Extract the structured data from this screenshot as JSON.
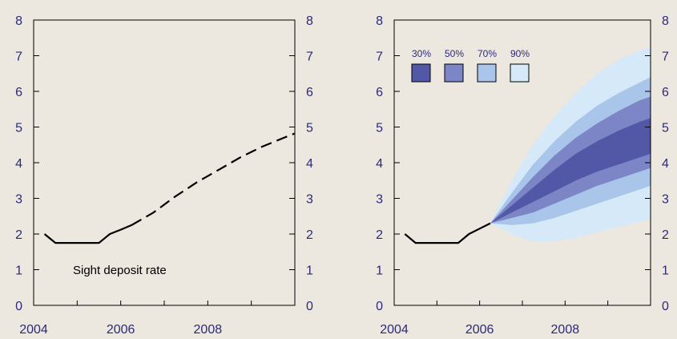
{
  "colors": {
    "background": "#ece7df",
    "axis_text": "#2b2a7a",
    "frame": "#000000",
    "line": "#000000",
    "band_30": "#5257a6",
    "band_50": "#7c86c6",
    "band_70": "#a9c6ea",
    "band_90": "#d6e9f8"
  },
  "chart_data": [
    {
      "type": "line",
      "title": "",
      "xlabel": "",
      "ylabel": "",
      "xlim": [
        2004.0,
        2010.0
      ],
      "ylim": [
        0,
        8
      ],
      "x_ticks": [
        2004,
        2006,
        2008
      ],
      "x_tick_labels": [
        "2004",
        "2006",
        "2008"
      ],
      "y_ticks": [
        0,
        1,
        2,
        3,
        4,
        5,
        6,
        7,
        8
      ],
      "y_tick_labels_left": [
        "0",
        "1",
        "2",
        "3",
        "4",
        "5",
        "6",
        "7",
        "8"
      ],
      "y_tick_labels_right": [
        "0",
        "1",
        "2",
        "3",
        "4",
        "5",
        "6",
        "7",
        "8"
      ],
      "grid": false,
      "annotation": "Sight deposit rate",
      "series": [
        {
          "style": "solid",
          "x": [
            2004.25,
            2004.5,
            2004.75,
            2005.0,
            2005.25,
            2005.5,
            2005.75,
            2006.0,
            2006.25
          ],
          "y": [
            2.0,
            1.75,
            1.75,
            1.75,
            1.75,
            1.75,
            2.0,
            2.12,
            2.25
          ]
        },
        {
          "style": "dashed",
          "x": [
            2006.25,
            2006.75,
            2007.25,
            2007.75,
            2008.25,
            2008.75,
            2009.25,
            2009.75,
            2010.0
          ],
          "y": [
            2.25,
            2.6,
            3.05,
            3.45,
            3.8,
            4.15,
            4.45,
            4.7,
            4.82
          ]
        }
      ]
    },
    {
      "type": "area",
      "title": "",
      "xlabel": "",
      "ylabel": "",
      "xlim": [
        2004.0,
        2010.0
      ],
      "ylim": [
        0,
        8
      ],
      "x_ticks": [
        2004,
        2006,
        2008
      ],
      "x_tick_labels": [
        "2004",
        "2006",
        "2008"
      ],
      "y_ticks": [
        0,
        1,
        2,
        3,
        4,
        5,
        6,
        7,
        8
      ],
      "y_tick_labels_left": [
        "0",
        "1",
        "2",
        "3",
        "4",
        "5",
        "6",
        "7",
        "8"
      ],
      "y_tick_labels_right": [
        "0",
        "1",
        "2",
        "3",
        "4",
        "5",
        "6",
        "7",
        "8"
      ],
      "grid": false,
      "legend": {
        "placement": "top-left",
        "orientation": "horizontal"
      },
      "history": {
        "x": [
          2004.25,
          2004.5,
          2004.75,
          2005.0,
          2005.25,
          2005.5,
          2005.75,
          2006.0,
          2006.25
        ],
        "y": [
          2.0,
          1.75,
          1.75,
          1.75,
          1.75,
          1.75,
          2.0,
          2.15,
          2.3
        ]
      },
      "bands": {
        "x": [
          2006.25,
          2006.75,
          2007.25,
          2007.75,
          2008.25,
          2008.75,
          2009.25,
          2009.75,
          2010.0
        ],
        "90%": {
          "lower": [
            2.3,
            2.0,
            1.78,
            1.8,
            1.88,
            2.05,
            2.2,
            2.35,
            2.42
          ],
          "upper": [
            2.3,
            3.5,
            4.5,
            5.3,
            5.95,
            6.5,
            6.9,
            7.15,
            7.25
          ]
        },
        "70%": {
          "lower": [
            2.3,
            2.25,
            2.3,
            2.45,
            2.65,
            2.85,
            3.05,
            3.25,
            3.35
          ],
          "upper": [
            2.3,
            3.15,
            3.95,
            4.6,
            5.15,
            5.6,
            5.95,
            6.25,
            6.4
          ]
        },
        "50%": {
          "lower": [
            2.3,
            2.45,
            2.6,
            2.85,
            3.1,
            3.35,
            3.55,
            3.75,
            3.85
          ],
          "upper": [
            2.3,
            2.95,
            3.6,
            4.2,
            4.7,
            5.1,
            5.45,
            5.75,
            5.85
          ]
        },
        "30%": {
          "lower": [
            2.3,
            2.6,
            2.9,
            3.2,
            3.5,
            3.75,
            3.95,
            4.15,
            4.25
          ],
          "upper": [
            2.3,
            2.8,
            3.3,
            3.8,
            4.25,
            4.6,
            4.9,
            5.15,
            5.25
          ]
        }
      },
      "legend_entries": [
        {
          "label": "30%",
          "color": "#5257a6"
        },
        {
          "label": "50%",
          "color": "#7c86c6"
        },
        {
          "label": "70%",
          "color": "#a9c6ea"
        },
        {
          "label": "90%",
          "color": "#d6e9f8"
        }
      ]
    }
  ]
}
